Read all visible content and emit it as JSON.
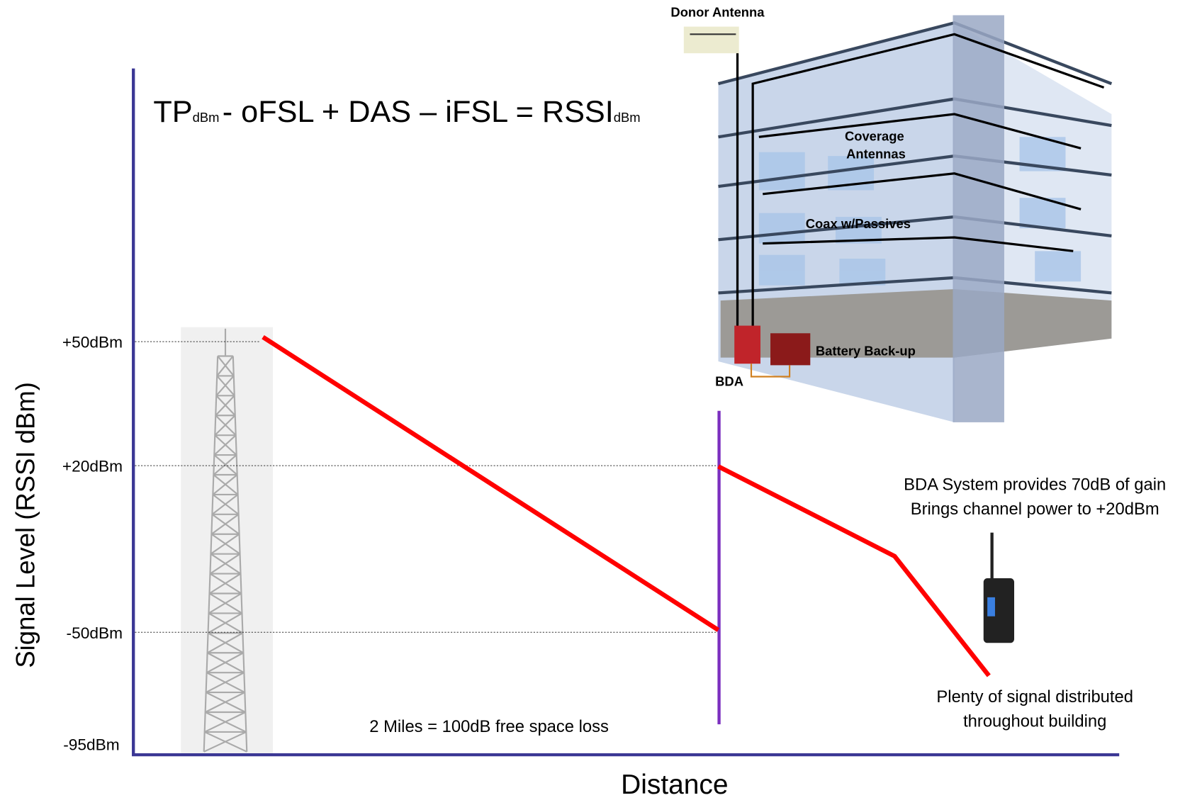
{
  "formula": {
    "tp": "TP",
    "tp_sub": "dBm",
    "middle": "- oFSL + DAS – iFSL = RSSI",
    "rssi_sub": "dBm"
  },
  "building": {
    "donor_antenna": "Donor Antenna",
    "coverage_antennas": [
      "Coverage",
      "Antennas"
    ],
    "coax": "Coax w/Passives",
    "battery": "Battery Back-up",
    "bda": "BDA"
  },
  "axis": {
    "y_label": "Signal Level (RSSI dBm)",
    "x_label": "Distance",
    "ticks": [
      "+50dBm",
      "+20dBm",
      "-50dBm",
      "-95dBm"
    ]
  },
  "annotations": {
    "loss": "2 Miles = 100dB free space loss",
    "bda_system": [
      "BDA System provides 70dB of gain",
      "Brings channel power to +20dBm"
    ],
    "plenty": [
      "Plenty of signal distributed",
      "throughout building"
    ]
  }
}
